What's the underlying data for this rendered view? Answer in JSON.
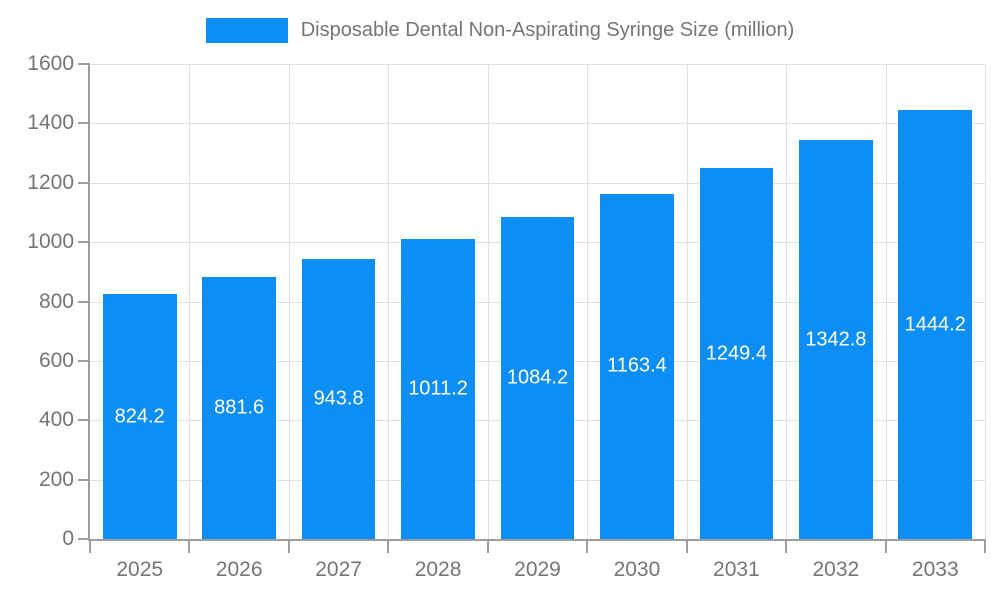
{
  "chart_data": {
    "type": "bar",
    "title": "Disposable Dental Non-Aspirating Syringe Size (million)",
    "categories": [
      "2025",
      "2026",
      "2027",
      "2028",
      "2029",
      "2030",
      "2031",
      "2032",
      "2033"
    ],
    "values": [
      824.2,
      881.6,
      943.8,
      1011.2,
      1084.2,
      1163.4,
      1249.4,
      1342.8,
      1444.2
    ],
    "value_labels": [
      "824.2",
      "881.6",
      "943.8",
      "1011.2",
      "1084.2",
      "1163.4",
      "1249.4",
      "1342.8",
      "1444.2"
    ],
    "xlabel": "",
    "ylabel": "",
    "ylim": [
      0,
      1600
    ],
    "yticks": [
      0,
      200,
      400,
      600,
      800,
      1000,
      1200,
      1400,
      1600
    ],
    "grid": true,
    "legend_position": "top",
    "bar_width_fraction": 0.74,
    "colors": {
      "bar": "#0d8ef4",
      "bar_value_text": "#ffffff",
      "axis_text": "#757575",
      "grid_line": "#e0e0e0",
      "axis_line": "#9e9e9e",
      "background": "#ffffff"
    }
  }
}
